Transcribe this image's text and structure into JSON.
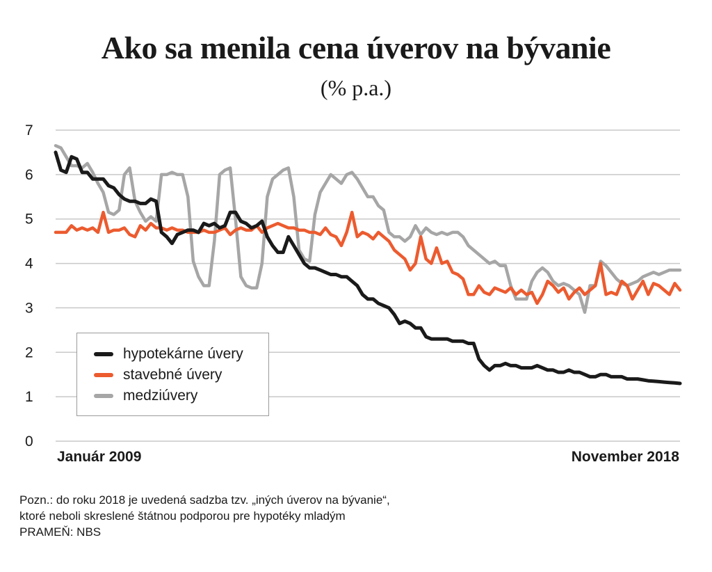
{
  "title": "Ako sa menila cena úverov na bývanie",
  "subtitle": "(% p.a.)",
  "x_start_label": "Január 2009",
  "x_end_label": "November 2018",
  "notes": [
    "Pozn.: do roku 2018 je uvedená sadzba tzv. „iných úverov na bývanie“,",
    "ktoré neboli skreslené štátnou podporou pre hypotéky mladým",
    "PRAMEŇ: NBS"
  ],
  "colors": {
    "hypotekarne": "#1a1a1a",
    "stavebne": "#ec5b2f",
    "medziuvery": "#a6a6a6",
    "grid": "#c8c8c8"
  },
  "chart_data": {
    "type": "line",
    "ylim": [
      0,
      7
    ],
    "y_ticks": [
      "0",
      "1",
      "2",
      "3",
      "4",
      "5",
      "6",
      "7"
    ],
    "grid": true,
    "legend_position": "bottom-left",
    "x": [
      "2009-01",
      "2009-02",
      "2009-03",
      "2009-04",
      "2009-05",
      "2009-06",
      "2009-07",
      "2009-08",
      "2009-09",
      "2009-10",
      "2009-11",
      "2009-12",
      "2010-01",
      "2010-02",
      "2010-03",
      "2010-04",
      "2010-05",
      "2010-06",
      "2010-07",
      "2010-08",
      "2010-09",
      "2010-10",
      "2010-11",
      "2010-12",
      "2011-01",
      "2011-02",
      "2011-03",
      "2011-04",
      "2011-05",
      "2011-06",
      "2011-07",
      "2011-08",
      "2011-09",
      "2011-10",
      "2011-11",
      "2011-12",
      "2012-01",
      "2012-02",
      "2012-03",
      "2012-04",
      "2012-05",
      "2012-06",
      "2012-07",
      "2012-08",
      "2012-09",
      "2012-10",
      "2012-11",
      "2012-12",
      "2013-01",
      "2013-02",
      "2013-03",
      "2013-04",
      "2013-05",
      "2013-06",
      "2013-07",
      "2013-08",
      "2013-09",
      "2013-10",
      "2013-11",
      "2013-12",
      "2014-01",
      "2014-02",
      "2014-03",
      "2014-04",
      "2014-05",
      "2014-06",
      "2014-07",
      "2014-08",
      "2014-09",
      "2014-10",
      "2014-11",
      "2014-12",
      "2015-01",
      "2015-02",
      "2015-03",
      "2015-04",
      "2015-05",
      "2015-06",
      "2015-07",
      "2015-08",
      "2015-09",
      "2015-10",
      "2015-11",
      "2015-12",
      "2016-01",
      "2016-02",
      "2016-03",
      "2016-04",
      "2016-05",
      "2016-06",
      "2016-07",
      "2016-08",
      "2016-09",
      "2016-10",
      "2016-11",
      "2016-12",
      "2017-01",
      "2017-02",
      "2017-03",
      "2017-04",
      "2017-05",
      "2017-06",
      "2017-07",
      "2017-08",
      "2017-09",
      "2017-10",
      "2017-11",
      "2017-12",
      "2018-01",
      "2018-02",
      "2018-03",
      "2018-04",
      "2018-05",
      "2018-06",
      "2018-07",
      "2018-08",
      "2018-09",
      "2018-10",
      "2018-11"
    ],
    "series": [
      {
        "name": "hypotekárne úvery",
        "color_key": "hypotekarne",
        "values": [
          6.5,
          6.1,
          6.05,
          6.4,
          6.35,
          6.05,
          6.05,
          5.9,
          5.9,
          5.9,
          5.75,
          5.7,
          5.55,
          5.45,
          5.4,
          5.4,
          5.35,
          5.35,
          5.45,
          5.4,
          4.7,
          4.6,
          4.45,
          4.65,
          4.7,
          4.75,
          4.75,
          4.7,
          4.9,
          4.85,
          4.9,
          4.8,
          4.85,
          5.15,
          5.15,
          4.95,
          4.9,
          4.8,
          4.85,
          4.95,
          4.6,
          4.4,
          4.25,
          4.25,
          4.6,
          4.4,
          4.2,
          4.0,
          3.9,
          3.9,
          3.85,
          3.8,
          3.75,
          3.75,
          3.7,
          3.7,
          3.6,
          3.5,
          3.3,
          3.2,
          3.2,
          3.1,
          3.05,
          3.0,
          2.85,
          2.65,
          2.7,
          2.65,
          2.55,
          2.55,
          2.35,
          2.3,
          2.3,
          2.3,
          2.3,
          2.25,
          2.25,
          2.25,
          2.2,
          2.2,
          1.85,
          1.7,
          1.6,
          1.7,
          1.7,
          1.75,
          1.7,
          1.7,
          1.65,
          1.65,
          1.65,
          1.7,
          1.65,
          1.6,
          1.6,
          1.55,
          1.55,
          1.6,
          1.55,
          1.55,
          1.5,
          1.45,
          1.45,
          1.5,
          1.5,
          1.45,
          1.45,
          1.45,
          1.4,
          1.4,
          1.4,
          1.38,
          1.36,
          1.35,
          1.34,
          1.33,
          1.32,
          1.31,
          1.3
        ]
      },
      {
        "name": "stavebné úvery",
        "color_key": "stavebne",
        "values": [
          4.7,
          4.7,
          4.7,
          4.85,
          4.75,
          4.8,
          4.75,
          4.8,
          4.7,
          5.15,
          4.7,
          4.75,
          4.75,
          4.8,
          4.65,
          4.6,
          4.85,
          4.75,
          4.9,
          4.8,
          4.8,
          4.75,
          4.8,
          4.75,
          4.75,
          4.7,
          4.7,
          4.7,
          4.75,
          4.7,
          4.7,
          4.75,
          4.8,
          4.65,
          4.75,
          4.8,
          4.75,
          4.75,
          4.85,
          4.7,
          4.8,
          4.85,
          4.9,
          4.85,
          4.8,
          4.8,
          4.75,
          4.75,
          4.7,
          4.7,
          4.65,
          4.8,
          4.65,
          4.6,
          4.4,
          4.7,
          5.15,
          4.6,
          4.7,
          4.65,
          4.55,
          4.7,
          4.6,
          4.5,
          4.3,
          4.2,
          4.1,
          3.85,
          4.0,
          4.6,
          4.1,
          4.0,
          4.35,
          4.0,
          4.05,
          3.8,
          3.75,
          3.65,
          3.3,
          3.3,
          3.5,
          3.35,
          3.3,
          3.45,
          3.4,
          3.35,
          3.45,
          3.3,
          3.4,
          3.3,
          3.35,
          3.1,
          3.3,
          3.6,
          3.5,
          3.35,
          3.45,
          3.2,
          3.35,
          3.45,
          3.3,
          3.4,
          3.5,
          4.0,
          3.3,
          3.35,
          3.3,
          3.6,
          3.5,
          3.2,
          3.4,
          3.6,
          3.3,
          3.55,
          3.5,
          3.4,
          3.3,
          3.55,
          3.4
        ]
      },
      {
        "name": "medziúvery",
        "color_key": "medziuvery",
        "values": [
          6.65,
          6.6,
          6.4,
          6.2,
          6.2,
          6.15,
          6.25,
          6.05,
          5.8,
          5.6,
          5.15,
          5.1,
          5.2,
          6.0,
          6.15,
          5.4,
          5.15,
          4.95,
          5.05,
          4.95,
          6.0,
          6.0,
          6.05,
          6.0,
          6.0,
          5.5,
          4.05,
          3.7,
          3.5,
          3.5,
          4.5,
          6.0,
          6.1,
          6.15,
          5.0,
          3.7,
          3.5,
          3.45,
          3.45,
          4.0,
          5.5,
          5.9,
          6.0,
          6.1,
          6.15,
          5.5,
          4.3,
          4.1,
          4.05,
          5.1,
          5.6,
          5.8,
          6.0,
          5.9,
          5.8,
          6.0,
          6.05,
          5.9,
          5.7,
          5.5,
          5.5,
          5.3,
          5.2,
          4.7,
          4.6,
          4.6,
          4.5,
          4.6,
          4.85,
          4.65,
          4.8,
          4.7,
          4.65,
          4.7,
          4.65,
          4.7,
          4.7,
          4.6,
          4.4,
          4.3,
          4.2,
          4.1,
          4.0,
          4.05,
          3.95,
          3.95,
          3.5,
          3.2,
          3.2,
          3.2,
          3.6,
          3.8,
          3.9,
          3.8,
          3.6,
          3.5,
          3.55,
          3.5,
          3.4,
          3.3,
          2.9,
          3.5,
          3.5,
          4.05,
          3.95,
          3.8,
          3.65,
          3.55,
          3.5,
          3.55,
          3.6,
          3.7,
          3.75,
          3.8,
          3.75,
          3.8,
          3.85,
          3.85,
          3.85
        ]
      }
    ]
  }
}
